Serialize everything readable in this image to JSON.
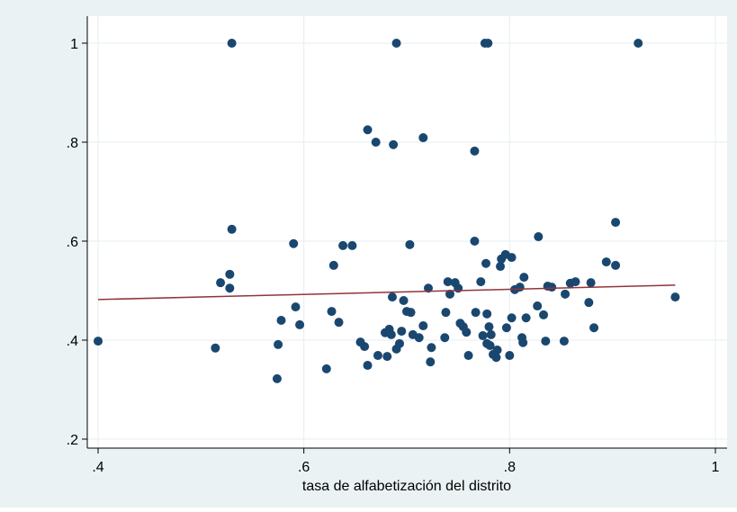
{
  "chart_data": {
    "type": "scatter",
    "xlabel": "tasa de alfabetización del distrito",
    "xlim": [
      0.3895,
      1.0114
    ],
    "ylim": [
      0.1818,
      1.0545
    ],
    "xticks": [
      {
        "value": 0.4,
        "label": ".4"
      },
      {
        "value": 0.6,
        "label": ".6"
      },
      {
        "value": 0.8,
        "label": ".8"
      },
      1
    ],
    "yticks": [
      {
        "value": 0.2,
        "label": ".2"
      },
      {
        "value": 0.4,
        "label": ".4"
      },
      {
        "value": 0.6,
        "label": ".6"
      },
      {
        "value": 0.8,
        "label": ".8"
      },
      1
    ],
    "grid": true,
    "points": {
      "color": "#1a476f",
      "x": [
        0.4,
        0.514,
        0.519,
        0.528,
        0.528,
        0.53,
        0.53,
        0.574,
        0.575,
        0.578,
        0.59,
        0.592,
        0.596,
        0.622,
        0.627,
        0.629,
        0.634,
        0.638,
        0.647,
        0.655,
        0.659,
        0.662,
        0.662,
        0.67,
        0.672,
        0.679,
        0.681,
        0.683,
        0.685,
        0.686,
        0.687,
        0.69,
        0.69,
        0.693,
        0.695,
        0.697,
        0.7,
        0.703,
        0.704,
        0.706,
        0.716,
        0.716,
        0.721,
        0.723,
        0.724,
        0.712,
        0.737,
        0.738,
        0.74,
        0.742,
        0.747,
        0.75,
        0.752,
        0.755,
        0.758,
        0.76,
        0.766,
        0.766,
        0.767,
        0.772,
        0.774,
        0.776,
        0.777,
        0.778,
        0.778,
        0.779,
        0.78,
        0.781,
        0.782,
        0.784,
        0.787,
        0.788,
        0.791,
        0.792,
        0.796,
        0.797,
        0.8,
        0.802,
        0.802,
        0.805,
        0.81,
        0.812,
        0.813,
        0.814,
        0.816,
        0.827,
        0.828,
        0.833,
        0.835,
        0.837,
        0.841,
        0.853,
        0.854,
        0.859,
        0.864,
        0.877,
        0.879,
        0.882,
        0.894,
        0.903,
        0.903,
        0.925,
        0.961
      ],
      "values": [
        0.398,
        0.384,
        0.516,
        0.505,
        0.533,
        0.624,
        1,
        0.322,
        0.391,
        0.44,
        0.595,
        0.467,
        0.431,
        0.342,
        0.458,
        0.551,
        0.436,
        0.591,
        0.591,
        0.396,
        0.387,
        0.825,
        0.349,
        0.8,
        0.369,
        0.415,
        0.367,
        0.422,
        0.411,
        0.487,
        0.795,
        0.382,
        1,
        0.393,
        0.418,
        0.48,
        0.458,
        0.593,
        0.456,
        0.411,
        0.809,
        0.429,
        0.505,
        0.356,
        0.385,
        0.405,
        0.405,
        0.456,
        0.518,
        0.493,
        0.516,
        0.505,
        0.434,
        0.427,
        0.416,
        0.369,
        0.6,
        0.782,
        0.456,
        0.518,
        0.409,
        1,
        0.555,
        0.453,
        0.393,
        1,
        0.427,
        0.389,
        0.411,
        0.371,
        0.365,
        0.38,
        0.549,
        0.564,
        0.573,
        0.425,
        0.369,
        0.567,
        0.445,
        0.502,
        0.507,
        0.405,
        0.395,
        0.527,
        0.445,
        0.469,
        0.609,
        0.451,
        0.398,
        0.509,
        0.507,
        0.398,
        0.493,
        0.515,
        0.518,
        0.476,
        0.516,
        0.425,
        0.558,
        0.551,
        0.638,
        1,
        0.487
      ]
    },
    "fit": {
      "color": "#90353b",
      "x": [
        0.4,
        0.961
      ],
      "values": [
        0.482,
        0.511
      ]
    }
  }
}
